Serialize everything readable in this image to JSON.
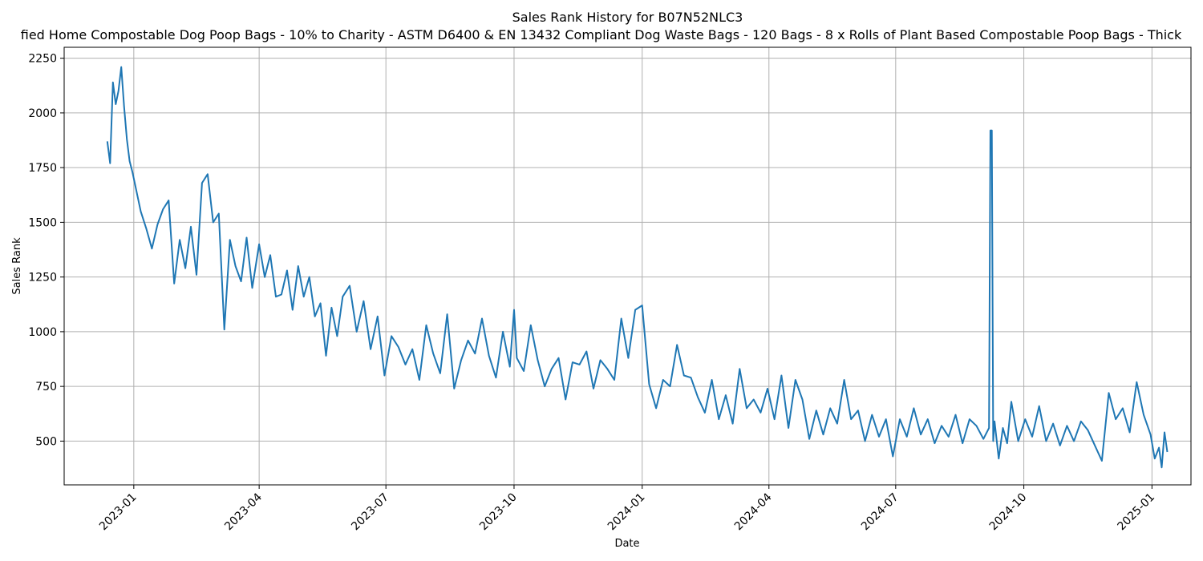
{
  "chart_data": {
    "type": "line",
    "title": "Sales Rank History for B07N52NLC3",
    "subtitle": "fied Home Compostable Dog Poop Bags - 10% to Charity - ASTM D6400 & EN 13432 Compliant Dog Waste Bags - 120 Bags - 8 x Rolls of Plant Based Compostable Poop Bags - Thick",
    "xlabel": "Date",
    "ylabel": "Sales Rank",
    "x_ticks": [
      "2023-01",
      "2023-04",
      "2023-07",
      "2023-10",
      "2024-01",
      "2024-04",
      "2024-07",
      "2024-10",
      "2025-01"
    ],
    "y_ticks": [
      500,
      750,
      1000,
      1250,
      1500,
      1750,
      2000,
      2250
    ],
    "ylim": [
      300,
      2300
    ],
    "xlim": [
      "2022-11-12",
      "2025-01-29"
    ],
    "grid": true,
    "color": "#1f77b4",
    "series": [
      {
        "x": [
          "2022-12-13",
          "2022-12-15",
          "2022-12-17",
          "2022-12-19",
          "2022-12-21",
          "2022-12-23",
          "2022-12-25",
          "2022-12-27",
          "2022-12-29",
          "2022-12-31",
          "2023-01-06",
          "2023-01-10",
          "2023-01-14",
          "2023-01-18",
          "2023-01-22",
          "2023-01-26",
          "2023-01-30",
          "2023-02-03",
          "2023-02-07",
          "2023-02-11",
          "2023-02-15",
          "2023-02-19",
          "2023-02-23",
          "2023-02-27",
          "2023-03-03",
          "2023-03-07",
          "2023-03-11",
          "2023-03-15",
          "2023-03-19",
          "2023-03-23",
          "2023-03-27",
          "2023-04-01",
          "2023-04-05",
          "2023-04-09",
          "2023-04-13",
          "2023-04-17",
          "2023-04-21",
          "2023-04-25",
          "2023-04-29",
          "2023-05-03",
          "2023-05-07",
          "2023-05-11",
          "2023-05-15",
          "2023-05-19",
          "2023-05-23",
          "2023-05-27",
          "2023-05-31",
          "2023-06-05",
          "2023-06-10",
          "2023-06-15",
          "2023-06-20",
          "2023-06-25",
          "2023-06-30",
          "2023-07-05",
          "2023-07-10",
          "2023-07-15",
          "2023-07-20",
          "2023-07-25",
          "2023-07-30",
          "2023-08-04",
          "2023-08-09",
          "2023-08-14",
          "2023-08-19",
          "2023-08-24",
          "2023-08-29",
          "2023-09-03",
          "2023-09-08",
          "2023-09-13",
          "2023-09-18",
          "2023-09-23",
          "2023-09-28",
          "2023-10-01",
          "2023-10-03",
          "2023-10-08",
          "2023-10-13",
          "2023-10-18",
          "2023-10-23",
          "2023-10-28",
          "2023-11-02",
          "2023-11-07",
          "2023-11-12",
          "2023-11-17",
          "2023-11-22",
          "2023-11-27",
          "2023-12-02",
          "2023-12-07",
          "2023-12-12",
          "2023-12-17",
          "2023-12-22",
          "2023-12-27",
          "2024-01-01",
          "2024-01-06",
          "2024-01-11",
          "2024-01-16",
          "2024-01-21",
          "2024-01-26",
          "2024-01-31",
          "2024-02-05",
          "2024-02-10",
          "2024-02-15",
          "2024-02-20",
          "2024-02-25",
          "2024-03-01",
          "2024-03-06",
          "2024-03-11",
          "2024-03-16",
          "2024-03-21",
          "2024-03-26",
          "2024-03-31",
          "2024-04-05",
          "2024-04-10",
          "2024-04-15",
          "2024-04-20",
          "2024-04-25",
          "2024-04-30",
          "2024-05-05",
          "2024-05-10",
          "2024-05-15",
          "2024-05-20",
          "2024-05-25",
          "2024-05-30",
          "2024-06-04",
          "2024-06-09",
          "2024-06-14",
          "2024-06-19",
          "2024-06-24",
          "2024-06-29",
          "2024-07-04",
          "2024-07-09",
          "2024-07-14",
          "2024-07-19",
          "2024-07-24",
          "2024-07-29",
          "2024-08-03",
          "2024-08-08",
          "2024-08-13",
          "2024-08-18",
          "2024-08-23",
          "2024-08-28",
          "2024-09-02",
          "2024-09-06",
          "2024-09-07",
          "2024-09-08",
          "2024-09-09",
          "2024-09-10",
          "2024-09-13",
          "2024-09-16",
          "2024-09-19",
          "2024-09-22",
          "2024-09-27",
          "2024-10-02",
          "2024-10-07",
          "2024-10-12",
          "2024-10-17",
          "2024-10-22",
          "2024-10-27",
          "2024-11-01",
          "2024-11-06",
          "2024-11-11",
          "2024-11-16",
          "2024-11-21",
          "2024-11-26",
          "2024-12-01",
          "2024-12-06",
          "2024-12-11",
          "2024-12-16",
          "2024-12-21",
          "2024-12-26",
          "2024-12-31",
          "2025-01-03",
          "2025-01-06",
          "2025-01-08",
          "2025-01-10",
          "2025-01-12"
        ],
        "y": [
          1870,
          1770,
          2140,
          2040,
          2100,
          2210,
          2030,
          1880,
          1780,
          1730,
          1550,
          1470,
          1380,
          1490,
          1560,
          1600,
          1220,
          1420,
          1290,
          1480,
          1260,
          1680,
          1720,
          1500,
          1540,
          1010,
          1420,
          1300,
          1230,
          1430,
          1200,
          1400,
          1250,
          1350,
          1160,
          1170,
          1280,
          1100,
          1300,
          1160,
          1250,
          1070,
          1130,
          890,
          1110,
          980,
          1160,
          1210,
          1000,
          1140,
          920,
          1070,
          800,
          980,
          930,
          850,
          920,
          780,
          1030,
          900,
          810,
          1080,
          740,
          870,
          960,
          900,
          1060,
          890,
          790,
          1000,
          840,
          1100,
          880,
          820,
          1030,
          870,
          750,
          830,
          880,
          690,
          860,
          850,
          910,
          740,
          870,
          830,
          780,
          1060,
          880,
          1100,
          1120,
          760,
          650,
          780,
          750,
          940,
          800,
          790,
          700,
          630,
          780,
          600,
          710,
          580,
          830,
          650,
          690,
          630,
          740,
          600,
          800,
          560,
          780,
          690,
          510,
          640,
          530,
          650,
          580,
          780,
          600,
          640,
          500,
          620,
          520,
          600,
          430,
          600,
          520,
          650,
          530,
          600,
          490,
          570,
          520,
          620,
          490,
          600,
          570,
          510,
          560,
          1920,
          1920,
          500,
          590,
          420,
          560,
          490,
          680,
          500,
          600,
          520,
          660,
          500,
          580,
          480,
          570,
          500,
          590,
          550,
          480,
          410,
          720,
          600,
          650,
          540,
          770,
          620,
          530,
          420,
          470,
          380,
          540,
          450
        ]
      }
    ]
  }
}
